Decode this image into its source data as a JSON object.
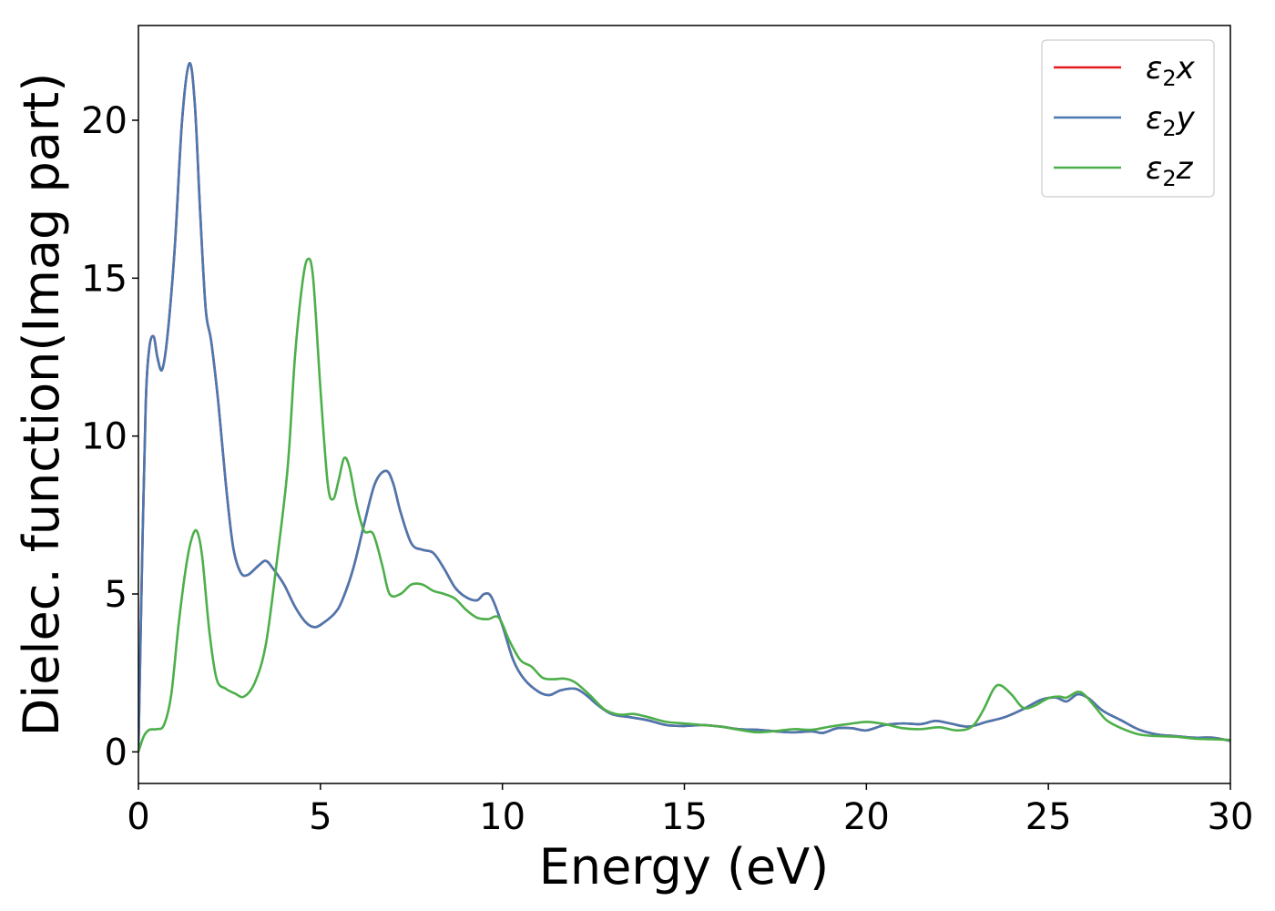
{
  "chart_data": {
    "type": "line",
    "xlabel": "Energy (eV)",
    "ylabel": "Dielec. function(Imag part)",
    "xlim": [
      0,
      30
    ],
    "ylim": [
      -1,
      23
    ],
    "x_ticks": [
      0,
      5,
      10,
      15,
      20,
      25,
      30
    ],
    "y_ticks": [
      0,
      5,
      10,
      15,
      20
    ],
    "x_tick_labels": [
      "0",
      "5",
      "10",
      "15",
      "20",
      "25",
      "30"
    ],
    "y_tick_labels": [
      "0",
      "5",
      "10",
      "15",
      "20"
    ],
    "grid": false,
    "legend_position": "top-right",
    "series": [
      {
        "name": "ε2x",
        "legend_base": "ε",
        "legend_sub": "2",
        "legend_var": "x",
        "color": "#e41a1c",
        "points": [
          [
            0,
            0
          ],
          [
            0.1,
            6
          ],
          [
            0.2,
            11
          ],
          [
            0.3,
            12.8
          ],
          [
            0.42,
            13.15
          ],
          [
            0.52,
            12.5
          ],
          [
            0.65,
            12.1
          ],
          [
            0.8,
            13.2
          ],
          [
            1.0,
            16
          ],
          [
            1.2,
            20
          ],
          [
            1.4,
            21.8
          ],
          [
            1.55,
            20.5
          ],
          [
            1.7,
            17
          ],
          [
            1.85,
            14
          ],
          [
            2.0,
            13
          ],
          [
            2.2,
            11
          ],
          [
            2.4,
            8.5
          ],
          [
            2.6,
            6.5
          ],
          [
            2.8,
            5.7
          ],
          [
            3.0,
            5.6
          ],
          [
            3.3,
            5.9
          ],
          [
            3.5,
            6.05
          ],
          [
            3.7,
            5.8
          ],
          [
            4.0,
            5.3
          ],
          [
            4.3,
            4.6
          ],
          [
            4.6,
            4.1
          ],
          [
            4.85,
            3.95
          ],
          [
            5.1,
            4.1
          ],
          [
            5.4,
            4.4
          ],
          [
            5.6,
            4.8
          ],
          [
            5.9,
            5.8
          ],
          [
            6.2,
            7.2
          ],
          [
            6.5,
            8.5
          ],
          [
            6.8,
            8.9
          ],
          [
            7.0,
            8.5
          ],
          [
            7.2,
            7.6
          ],
          [
            7.5,
            6.6
          ],
          [
            7.8,
            6.4
          ],
          [
            8.1,
            6.3
          ],
          [
            8.4,
            5.8
          ],
          [
            8.7,
            5.2
          ],
          [
            9.0,
            4.9
          ],
          [
            9.3,
            4.8
          ],
          [
            9.5,
            5.0
          ],
          [
            9.7,
            4.9
          ],
          [
            10.0,
            4.0
          ],
          [
            10.3,
            2.9
          ],
          [
            10.6,
            2.3
          ],
          [
            11.0,
            1.9
          ],
          [
            11.3,
            1.8
          ],
          [
            11.6,
            1.95
          ],
          [
            12.0,
            2.0
          ],
          [
            12.3,
            1.8
          ],
          [
            12.6,
            1.5
          ],
          [
            13.0,
            1.2
          ],
          [
            13.5,
            1.1
          ],
          [
            14.0,
            1.0
          ],
          [
            14.5,
            0.85
          ],
          [
            15.0,
            0.82
          ],
          [
            15.5,
            0.85
          ],
          [
            16.0,
            0.8
          ],
          [
            16.5,
            0.72
          ],
          [
            17.0,
            0.7
          ],
          [
            17.5,
            0.65
          ],
          [
            18.0,
            0.62
          ],
          [
            18.5,
            0.65
          ],
          [
            18.8,
            0.6
          ],
          [
            19.2,
            0.75
          ],
          [
            19.6,
            0.75
          ],
          [
            20.0,
            0.68
          ],
          [
            20.5,
            0.85
          ],
          [
            21.0,
            0.9
          ],
          [
            21.5,
            0.88
          ],
          [
            21.9,
            0.98
          ],
          [
            22.3,
            0.9
          ],
          [
            22.8,
            0.8
          ],
          [
            23.3,
            0.95
          ],
          [
            23.8,
            1.1
          ],
          [
            24.3,
            1.35
          ],
          [
            24.8,
            1.65
          ],
          [
            25.2,
            1.72
          ],
          [
            25.5,
            1.6
          ],
          [
            25.8,
            1.82
          ],
          [
            26.1,
            1.7
          ],
          [
            26.5,
            1.3
          ],
          [
            27.0,
            1.0
          ],
          [
            27.5,
            0.7
          ],
          [
            28.0,
            0.55
          ],
          [
            28.5,
            0.5
          ],
          [
            29.0,
            0.45
          ],
          [
            29.5,
            0.45
          ],
          [
            30.0,
            0.35
          ]
        ]
      },
      {
        "name": "ε2y",
        "legend_base": "ε",
        "legend_sub": "2",
        "legend_var": "y",
        "color": "#4a78b0",
        "points": [
          [
            0,
            0
          ],
          [
            0.1,
            6
          ],
          [
            0.2,
            11
          ],
          [
            0.3,
            12.8
          ],
          [
            0.42,
            13.15
          ],
          [
            0.52,
            12.5
          ],
          [
            0.65,
            12.1
          ],
          [
            0.8,
            13.2
          ],
          [
            1.0,
            16
          ],
          [
            1.2,
            20
          ],
          [
            1.4,
            21.8
          ],
          [
            1.55,
            20.5
          ],
          [
            1.7,
            17
          ],
          [
            1.85,
            14
          ],
          [
            2.0,
            13
          ],
          [
            2.2,
            11
          ],
          [
            2.4,
            8.5
          ],
          [
            2.6,
            6.5
          ],
          [
            2.8,
            5.7
          ],
          [
            3.0,
            5.6
          ],
          [
            3.3,
            5.9
          ],
          [
            3.5,
            6.05
          ],
          [
            3.7,
            5.8
          ],
          [
            4.0,
            5.3
          ],
          [
            4.3,
            4.6
          ],
          [
            4.6,
            4.1
          ],
          [
            4.85,
            3.95
          ],
          [
            5.1,
            4.1
          ],
          [
            5.4,
            4.4
          ],
          [
            5.6,
            4.8
          ],
          [
            5.9,
            5.8
          ],
          [
            6.2,
            7.2
          ],
          [
            6.5,
            8.5
          ],
          [
            6.8,
            8.9
          ],
          [
            7.0,
            8.5
          ],
          [
            7.2,
            7.6
          ],
          [
            7.5,
            6.6
          ],
          [
            7.8,
            6.4
          ],
          [
            8.1,
            6.3
          ],
          [
            8.4,
            5.8
          ],
          [
            8.7,
            5.2
          ],
          [
            9.0,
            4.9
          ],
          [
            9.3,
            4.8
          ],
          [
            9.5,
            5.0
          ],
          [
            9.7,
            4.9
          ],
          [
            10.0,
            4.0
          ],
          [
            10.3,
            2.9
          ],
          [
            10.6,
            2.3
          ],
          [
            11.0,
            1.9
          ],
          [
            11.3,
            1.8
          ],
          [
            11.6,
            1.95
          ],
          [
            12.0,
            2.0
          ],
          [
            12.3,
            1.8
          ],
          [
            12.6,
            1.5
          ],
          [
            13.0,
            1.2
          ],
          [
            13.5,
            1.1
          ],
          [
            14.0,
            1.0
          ],
          [
            14.5,
            0.85
          ],
          [
            15.0,
            0.82
          ],
          [
            15.5,
            0.85
          ],
          [
            16.0,
            0.8
          ],
          [
            16.5,
            0.72
          ],
          [
            17.0,
            0.7
          ],
          [
            17.5,
            0.65
          ],
          [
            18.0,
            0.62
          ],
          [
            18.5,
            0.65
          ],
          [
            18.8,
            0.6
          ],
          [
            19.2,
            0.75
          ],
          [
            19.6,
            0.75
          ],
          [
            20.0,
            0.68
          ],
          [
            20.5,
            0.85
          ],
          [
            21.0,
            0.9
          ],
          [
            21.5,
            0.88
          ],
          [
            21.9,
            0.98
          ],
          [
            22.3,
            0.9
          ],
          [
            22.8,
            0.8
          ],
          [
            23.3,
            0.95
          ],
          [
            23.8,
            1.1
          ],
          [
            24.3,
            1.35
          ],
          [
            24.8,
            1.65
          ],
          [
            25.2,
            1.72
          ],
          [
            25.5,
            1.6
          ],
          [
            25.8,
            1.82
          ],
          [
            26.1,
            1.7
          ],
          [
            26.5,
            1.3
          ],
          [
            27.0,
            1.0
          ],
          [
            27.5,
            0.7
          ],
          [
            28.0,
            0.55
          ],
          [
            28.5,
            0.5
          ],
          [
            29.0,
            0.45
          ],
          [
            29.5,
            0.45
          ],
          [
            30.0,
            0.35
          ]
        ]
      },
      {
        "name": "ε2z",
        "legend_base": "ε",
        "legend_sub": "2",
        "legend_var": "z",
        "color": "#4daf4a",
        "points": [
          [
            0,
            0
          ],
          [
            0.15,
            0.5
          ],
          [
            0.3,
            0.7
          ],
          [
            0.5,
            0.72
          ],
          [
            0.7,
            0.85
          ],
          [
            0.9,
            1.8
          ],
          [
            1.1,
            4.0
          ],
          [
            1.3,
            5.8
          ],
          [
            1.45,
            6.7
          ],
          [
            1.6,
            7.0
          ],
          [
            1.75,
            6.2
          ],
          [
            1.95,
            3.8
          ],
          [
            2.15,
            2.3
          ],
          [
            2.4,
            2.0
          ],
          [
            2.65,
            1.85
          ],
          [
            2.9,
            1.75
          ],
          [
            3.2,
            2.2
          ],
          [
            3.5,
            3.4
          ],
          [
            3.8,
            6.0
          ],
          [
            4.1,
            9.0
          ],
          [
            4.3,
            12.5
          ],
          [
            4.5,
            14.8
          ],
          [
            4.65,
            15.6
          ],
          [
            4.8,
            15.0
          ],
          [
            5.0,
            11.5
          ],
          [
            5.2,
            8.5
          ],
          [
            5.35,
            8.0
          ],
          [
            5.5,
            8.6
          ],
          [
            5.65,
            9.3
          ],
          [
            5.8,
            9.0
          ],
          [
            6.0,
            7.8
          ],
          [
            6.2,
            7.0
          ],
          [
            6.45,
            6.9
          ],
          [
            6.7,
            5.9
          ],
          [
            6.9,
            5.0
          ],
          [
            7.2,
            5.0
          ],
          [
            7.5,
            5.3
          ],
          [
            7.8,
            5.3
          ],
          [
            8.1,
            5.1
          ],
          [
            8.4,
            5.0
          ],
          [
            8.7,
            4.85
          ],
          [
            9.0,
            4.5
          ],
          [
            9.3,
            4.25
          ],
          [
            9.6,
            4.2
          ],
          [
            9.9,
            4.25
          ],
          [
            10.2,
            3.5
          ],
          [
            10.5,
            2.9
          ],
          [
            10.8,
            2.7
          ],
          [
            11.1,
            2.35
          ],
          [
            11.4,
            2.3
          ],
          [
            11.7,
            2.32
          ],
          [
            12.0,
            2.2
          ],
          [
            12.4,
            1.8
          ],
          [
            12.8,
            1.35
          ],
          [
            13.2,
            1.18
          ],
          [
            13.6,
            1.2
          ],
          [
            14.0,
            1.1
          ],
          [
            14.5,
            0.95
          ],
          [
            15.0,
            0.9
          ],
          [
            15.5,
            0.85
          ],
          [
            16.0,
            0.8
          ],
          [
            16.5,
            0.7
          ],
          [
            17.0,
            0.62
          ],
          [
            17.5,
            0.66
          ],
          [
            18.0,
            0.72
          ],
          [
            18.5,
            0.7
          ],
          [
            19.0,
            0.8
          ],
          [
            19.5,
            0.88
          ],
          [
            20.0,
            0.95
          ],
          [
            20.5,
            0.88
          ],
          [
            21.0,
            0.75
          ],
          [
            21.5,
            0.72
          ],
          [
            22.0,
            0.78
          ],
          [
            22.5,
            0.68
          ],
          [
            22.9,
            0.8
          ],
          [
            23.2,
            1.3
          ],
          [
            23.5,
            2.0
          ],
          [
            23.7,
            2.1
          ],
          [
            24.0,
            1.8
          ],
          [
            24.3,
            1.4
          ],
          [
            24.6,
            1.45
          ],
          [
            25.0,
            1.7
          ],
          [
            25.3,
            1.75
          ],
          [
            25.5,
            1.72
          ],
          [
            25.8,
            1.9
          ],
          [
            26.0,
            1.8
          ],
          [
            26.3,
            1.4
          ],
          [
            26.6,
            1.0
          ],
          [
            27.0,
            0.75
          ],
          [
            27.5,
            0.55
          ],
          [
            28.0,
            0.5
          ],
          [
            28.5,
            0.48
          ],
          [
            29.0,
            0.42
          ],
          [
            29.5,
            0.4
          ],
          [
            30.0,
            0.38
          ]
        ]
      }
    ]
  }
}
